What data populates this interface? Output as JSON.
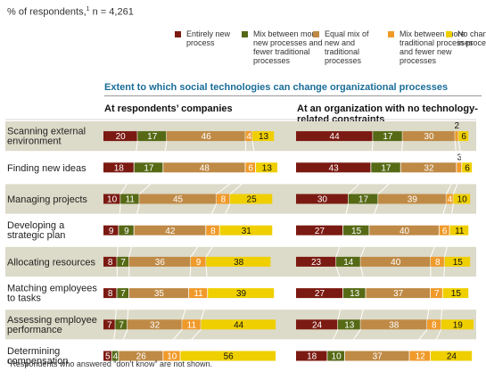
{
  "subtitle": {
    "text": "% of respondents,",
    "note_marker": "1",
    "n": " n = 4,261"
  },
  "legend": [
    {
      "label": "Entirely new\nprocess",
      "color": "#7b1a12"
    },
    {
      "label": "Mix between more\nnew processes and\nfewer traditional\nprocesses",
      "color": "#566a16"
    },
    {
      "label": "Equal mix of\nnew and\ntraditional\nprocesses",
      "color": "#bf8a46"
    },
    {
      "label": "Mix between more\ntraditional processes\nand fewer new\nprocesses",
      "color": "#f09a2a"
    },
    {
      "label": "No change\nin process",
      "color": "#efcf00"
    }
  ],
  "footnote": {
    "marker": "1",
    "text": "Respondents who answered “don’t know” are not shown."
  },
  "chart_data": {
    "type": "bar",
    "orientation": "horizontal",
    "stacked": true,
    "title": "Extent to which social technologies can change organizational processes",
    "categories": [
      "Scanning external environment",
      "Finding new ideas",
      "Managing projects",
      "Developing a strategic plan",
      "Allocating resources",
      "Matching employees to tasks",
      "Assessing employee performance",
      "Determining compensation"
    ],
    "category_labels": [
      "Scanning external\nenvironment",
      "Finding new ideas",
      "Managing projects",
      "Developing a\nstrategic plan",
      "Allocating resources",
      "Matching employees\nto tasks",
      "Assessing employee\nperformance",
      "Determining\ncompensation"
    ],
    "series_names": [
      "Entirely new process",
      "Mix between more new processes and fewer traditional processes",
      "Equal mix of new and traditional processes",
      "Mix between more traditional processes and fewer new processes",
      "No change in process"
    ],
    "panels": [
      {
        "name": "At respondents’ companies",
        "values": [
          [
            20,
            17,
            46,
            4,
            13
          ],
          [
            18,
            17,
            48,
            6,
            13
          ],
          [
            10,
            11,
            45,
            8,
            25
          ],
          [
            9,
            9,
            42,
            8,
            31
          ],
          [
            8,
            7,
            36,
            9,
            38
          ],
          [
            8,
            7,
            35,
            11,
            39
          ],
          [
            7,
            7,
            32,
            11,
            44
          ],
          [
            5,
            4,
            26,
            10,
            56
          ]
        ]
      },
      {
        "name": "At an organization with no technology-\nrelated constraints",
        "values": [
          [
            44,
            17,
            30,
            2,
            6
          ],
          [
            43,
            17,
            32,
            3,
            6
          ],
          [
            30,
            17,
            39,
            4,
            10
          ],
          [
            27,
            15,
            40,
            6,
            11
          ],
          [
            23,
            14,
            40,
            8,
            15
          ],
          [
            27,
            13,
            37,
            7,
            15
          ],
          [
            24,
            13,
            38,
            8,
            19
          ],
          [
            18,
            10,
            37,
            12,
            24
          ]
        ]
      }
    ],
    "xlim": [
      0,
      100
    ],
    "colors": {
      "row_band": "#dcdac8",
      "row_band_alt": "#ffffff",
      "label_light": "#ffffff",
      "label_dark": "#111111",
      "connector": "#ffffff"
    }
  }
}
